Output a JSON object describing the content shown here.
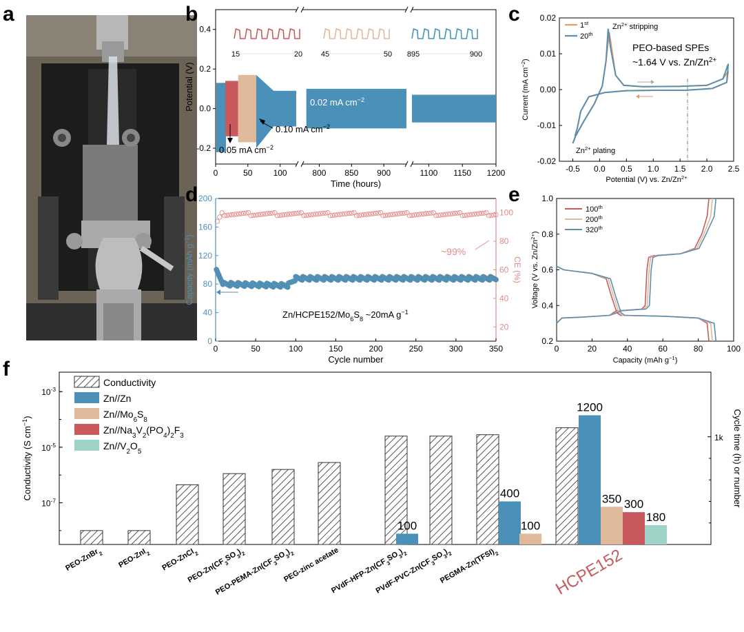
{
  "panel_labels": {
    "a": "a",
    "b": "b",
    "c": "c",
    "d": "d",
    "e": "e",
    "f": "f"
  },
  "colors": {
    "blue": "#4a90b8",
    "red": "#c85a5e",
    "tan": "#e0b89a",
    "teal": "#9fd3c7",
    "pink": "#e08a8a",
    "steel": "#5b8fb0"
  },
  "chart_data": [
    {
      "panel": "b",
      "type": "line",
      "xlabel": "Time (hours)",
      "ylabel": "Potential (V)",
      "xticks": [
        "0",
        "50",
        "100",
        "800",
        "850",
        "900",
        "1100",
        "1150",
        "1200"
      ],
      "yticks": [
        "-0.2",
        "0.0",
        "0.2",
        "0.4"
      ],
      "ylim": [
        -0.28,
        0.5
      ],
      "segments": [
        {
          "name": "0.05 mA cm-2",
          "x": [
            15,
            35
          ],
          "amplitude": 0.14
        },
        {
          "name": "0.10 mA cm-2",
          "x": [
            35,
            63
          ],
          "amplitude": 0.17
        },
        {
          "name": "0.02 mA cm-2",
          "x": [
            63,
            1200
          ],
          "amplitude": 0.07
        }
      ],
      "annotations": {
        "a1_main": "0.05 mA cm",
        "a1_sup": "−2",
        "a2_main": "0.10 mA cm",
        "a2_sup": "−2",
        "a3_main": "0.02 mA cm",
        "a3_sup": "−2"
      },
      "inset_labels": [
        [
          "15",
          "20"
        ],
        [
          "45",
          "50"
        ],
        [
          "895",
          "900"
        ]
      ]
    },
    {
      "panel": "c",
      "type": "line",
      "xlabel_main": "Potential (V) vs. Zn/Zn",
      "xlabel_sup": "2+",
      "ylabel": "Current (mA cm",
      "ylabel_sup": "−2",
      "ylabel_end": ")",
      "xticks": [
        "-0.5",
        "0.0",
        "0.5",
        "1.0",
        "1.5",
        "2.0",
        "2.5"
      ],
      "yticks": [
        "-0.02",
        "-0.01",
        "0.00",
        "0.01",
        "0.02"
      ],
      "xlim": [
        -0.75,
        2.5
      ],
      "ylim": [
        -0.02,
        0.02
      ],
      "series": [
        {
          "name": "1st",
          "label": "1",
          "sup": "st"
        },
        {
          "name": "20th",
          "label": "20",
          "sup": "th"
        }
      ],
      "annotations": {
        "stripping_a": "Zn",
        "stripping_sup": "2+",
        "stripping_b": " stripping",
        "plating_a": "Zn",
        "plating_sup": "2+",
        "plating_b": " plating",
        "title1": "PEO-based SPEs",
        "title2_a": "~1.64 V vs. Zn/Zn",
        "title2_sup": "2+"
      }
    },
    {
      "panel": "d",
      "type": "scatter",
      "xlabel": "Cycle number",
      "ylabel_left": "Capacity (mAh g",
      "ylabel_left_sup": "−1",
      "ylabel_left_end": ")",
      "ylabel_right": "CE (%)",
      "xticks": [
        "0",
        "50",
        "100",
        "150",
        "200",
        "250",
        "300",
        "350"
      ],
      "yticks_left": [
        "0",
        "40",
        "80",
        "120",
        "160",
        "200"
      ],
      "yticks_right": [
        "20",
        "40",
        "60",
        "80",
        "100"
      ],
      "xlim": [
        0,
        350
      ],
      "ylim_left": [
        0,
        200
      ],
      "ylim_right": [
        10,
        110
      ],
      "capacity_level": [
        {
          "x": 0,
          "y": 100
        },
        {
          "x": 10,
          "y": 80
        },
        {
          "x": 90,
          "y": 78
        },
        {
          "x": 100,
          "y": 88
        },
        {
          "x": 350,
          "y": 88
        }
      ],
      "ce_level": 100,
      "annotations": {
        "ce": "~99%",
        "cell_a": "Zn/HCPE152/Mo",
        "cell_s1": "6",
        "cell_b": "S",
        "cell_s2": "8",
        "cell_c": "   ~20mA g",
        "cell_sup": "−1"
      }
    },
    {
      "panel": "e",
      "type": "line",
      "xlabel": "Capacity (mAh g",
      "xlabel_sup": "−1",
      "xlabel_end": ")",
      "ylabel": "Voltage (V vs. Zn/Zn",
      "ylabel_sup": "2+",
      "ylabel_end": ")",
      "xticks": [
        "0",
        "20",
        "40",
        "60",
        "80",
        "100"
      ],
      "yticks": [
        "0.2",
        "0.4",
        "0.6",
        "0.8",
        "1.0"
      ],
      "xlim": [
        0,
        100
      ],
      "ylim": [
        0.2,
        1.0
      ],
      "series": [
        {
          "name": "100th",
          "label": "100",
          "sup": "th",
          "charge_end": 86,
          "discharge_end": 86
        },
        {
          "name": "200th",
          "label": "200",
          "sup": "th",
          "charge_end": 88,
          "discharge_end": 88
        },
        {
          "name": "320th",
          "label": "320",
          "sup": "th",
          "charge_end": 90,
          "discharge_end": 90
        }
      ]
    },
    {
      "panel": "f",
      "type": "bar",
      "ylabel_left": "Conductivity (S cm",
      "ylabel_left_sup": "−1",
      "ylabel_left_end": ")",
      "ylabel_right": "Cycle time (h) or number",
      "yticks_left": [
        {
          "base": "10",
          "exp": "-7",
          "v": -7
        },
        {
          "base": "10",
          "exp": "-5",
          "v": -5
        },
        {
          "base": "10",
          "exp": "-3",
          "v": -3
        }
      ],
      "ytick_right": "1k",
      "categories": [
        "PEO-ZnBr2",
        "PEO-ZnI2",
        "PEO-ZnCl2",
        "PEO-Zn(CF3SO3)2",
        "PEO-PEMA-Zn(CF3SO3)2",
        "PEG-zinc acetate",
        "PVdF-HFP-Zn(CF3SO3)2",
        "PVdF-PVC-Zn(CF3SO3)2",
        "PEGMA-Zn(TFSI)2",
        "HCPE152"
      ],
      "conductivity_log10": [
        -8.0,
        -8.0,
        -6.35,
        -5.95,
        -5.8,
        -5.55,
        -4.6,
        -4.6,
        -4.55,
        -4.3
      ],
      "cycle_bars": [
        {
          "category": "PVdF-HFP-Zn(CF3SO3)2",
          "series": "Zn//Zn",
          "value": 100
        },
        {
          "category": "PEGMA-Zn(TFSI)2",
          "series": "Zn//Zn",
          "value": 400
        },
        {
          "category": "PEGMA-Zn(TFSI)2",
          "series": "Zn//Mo6S8",
          "value": 100
        },
        {
          "category": "HCPE152",
          "series": "Zn//Zn",
          "value": 1200
        },
        {
          "category": "HCPE152",
          "series": "Zn//Mo6S8",
          "value": 350
        },
        {
          "category": "HCPE152",
          "series": "Zn//Na3V2(PO4)2F3",
          "value": 300
        },
        {
          "category": "HCPE152",
          "series": "Zn//V2O5",
          "value": 180
        }
      ],
      "value_labels": [
        "100",
        "400",
        "100",
        "1200",
        "350",
        "300",
        "180"
      ],
      "legend": [
        "Conductivity",
        "Zn//Zn",
        "Zn//Mo6S8",
        "Zn//Na3V2(PO4)2F3",
        "Zn//V2O5"
      ]
    }
  ]
}
